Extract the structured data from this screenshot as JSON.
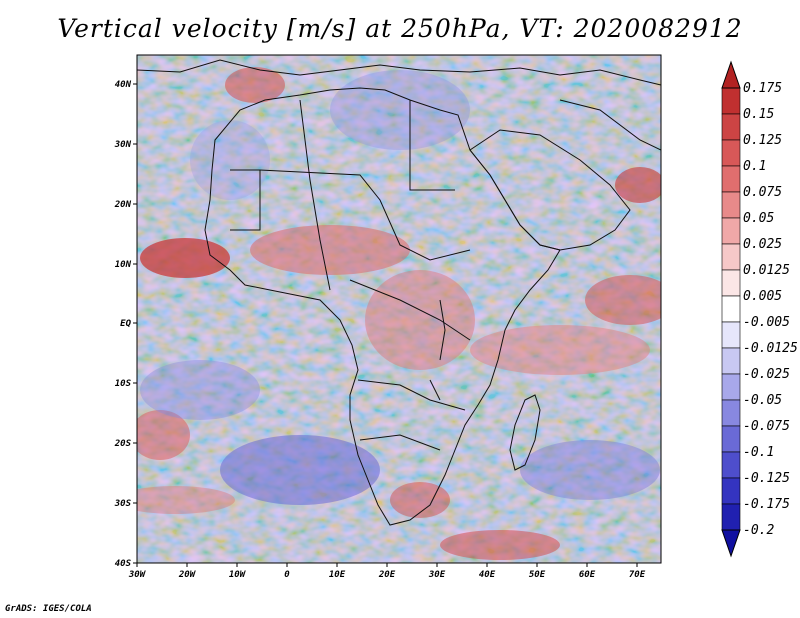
{
  "title": "Vertical velocity [m/s] at 250hPa, VT: 2020082912",
  "credit": "GrADS: IGES/COLA",
  "x_ticks": [
    "30W",
    "20W",
    "10W",
    "0",
    "10E",
    "20E",
    "30E",
    "40E",
    "50E",
    "60E",
    "70E"
  ],
  "y_ticks": [
    "40N",
    "30N",
    "20N",
    "10N",
    "EQ",
    "10S",
    "20S",
    "30S",
    "40S"
  ],
  "colorbar": {
    "labels": [
      "0.175",
      "0.15",
      "0.125",
      "0.1",
      "0.075",
      "0.05",
      "0.025",
      "0.0125",
      "0.005",
      "-0.005",
      "-0.0125",
      "-0.025",
      "-0.05",
      "-0.075",
      "-0.1",
      "-0.125",
      "-0.175",
      "-0.2"
    ],
    "colors": [
      "#b22222",
      "#c03030",
      "#cc4444",
      "#d85858",
      "#e06e6e",
      "#e88a8a",
      "#f0a8a8",
      "#f6c8c8",
      "#fbe6e6",
      "#ffffff",
      "#e6e6fb",
      "#c8c8f2",
      "#a8a8ea",
      "#8888e0",
      "#6a6ad6",
      "#4e4ecc",
      "#3434c0",
      "#2020b0",
      "#1010a0"
    ]
  }
}
